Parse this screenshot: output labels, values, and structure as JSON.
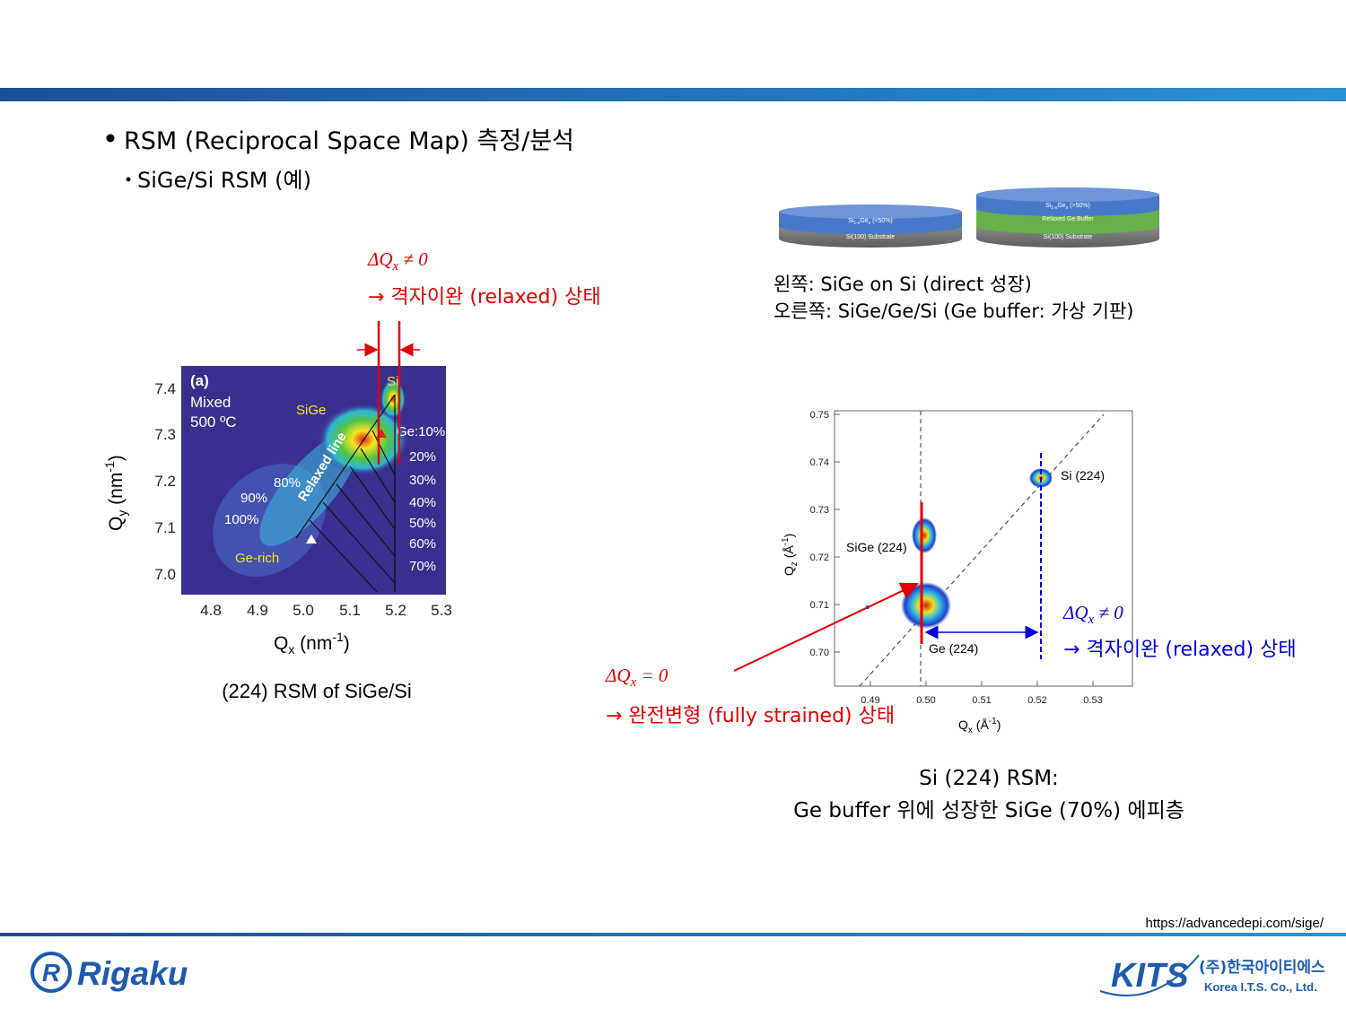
{
  "bullets": {
    "main": "RSM (Reciprocal Space Map) 측정/분석",
    "sub": "SiGe/Si RSM (예)"
  },
  "left_annotation": {
    "delta": [
      "ΔQ",
      "x",
      " ≠ 0"
    ],
    "text": "→ 격자이완 (relaxed) 상태"
  },
  "left_figure": {
    "panel_label": "(a)",
    "condition": [
      "Mixed",
      "500 ºC"
    ],
    "labels": {
      "sige": "SiGe",
      "si": "Si",
      "relaxed_line": "Relaxed line",
      "ge_rich": "Ge-rich",
      "right_series": [
        "Ge:10%",
        "20%",
        "30%",
        "40%",
        "50%",
        "60%",
        "70%"
      ],
      "left_series": [
        "80%",
        "90%",
        "100%"
      ]
    },
    "xticks": [
      "4.8",
      "4.9",
      "5.0",
      "5.1",
      "5.2",
      "5.3"
    ],
    "yticks": [
      "7.4",
      "7.3",
      "7.2",
      "7.1",
      "7.0"
    ],
    "xlabel": [
      "Q",
      "x",
      " (nm",
      "-1",
      ")"
    ],
    "ylabel": [
      "Q",
      "y",
      " (nm",
      "-1",
      ")"
    ],
    "caption": "(224) RSM of SiGe/Si"
  },
  "schematic": {
    "left": {
      "top": [
        "Si",
        "1-x",
        "Ge",
        "x",
        " (<50%)"
      ],
      "bottom": "Si(100) Substrate"
    },
    "right": {
      "top": [
        "Si",
        "1-x",
        "Ge",
        "x",
        " (>50%)"
      ],
      "middle": "Relaxed Ge Buffer",
      "bottom": "Si(100) Substrate"
    },
    "caption": [
      "왼쪽: SiGe on Si (direct 성장)",
      "오른쪽: SiGe/Ge/Si  (Ge buffer: 가상 기판)"
    ]
  },
  "right_figure": {
    "xticks": [
      "0.49",
      "0.50",
      "0.51",
      "0.52",
      "0.53"
    ],
    "yticks": [
      "0.75",
      "0.74",
      "0.73",
      "0.72",
      "0.71",
      "0.70"
    ],
    "xlabel": [
      "Q",
      "x",
      " (Å",
      "-1",
      ")"
    ],
    "ylabel": [
      "Q",
      "z",
      " (Å",
      "-1",
      ")"
    ],
    "peaks": [
      "Si (224)",
      "SiGe (224)",
      "Ge (224)"
    ],
    "caption": [
      "Si (224) RSM:",
      "Ge buffer 위에 성장한 SiGe (70%) 에피층"
    ]
  },
  "blue_annotation": {
    "delta": [
      "ΔQ",
      "x",
      " ≠ 0"
    ],
    "text": "→ 격자이완 (relaxed) 상태"
  },
  "red_annotation": {
    "delta": [
      "ΔQ",
      "x",
      " = 0"
    ],
    "text": "→ 완전변형 (fully strained) 상태"
  },
  "footer": {
    "url": "https://advancedepi.com/sige/",
    "left_logo": "Rigaku",
    "right_logo": {
      "mark": "KITS",
      "korean": "(주)한국아이티에스",
      "english": "Korea I.T.S. Co., Ltd."
    }
  }
}
